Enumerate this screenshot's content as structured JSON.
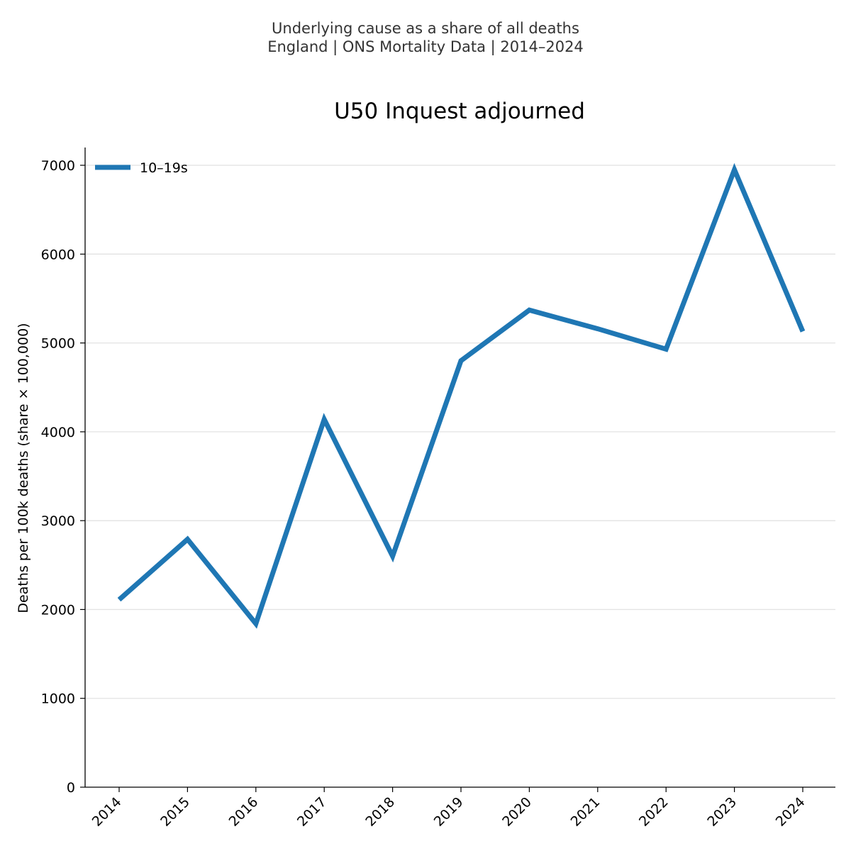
{
  "header": {
    "subtitle_line1": "Underlying cause as a share of all deaths",
    "subtitle_line2": "England | ONS Mortality Data | 2014–2024"
  },
  "chart_data": {
    "type": "line",
    "title": "U50 Inquest adjourned",
    "xlabel": "",
    "ylabel": "Deaths per 100k deaths (share × 100,000)",
    "categories": [
      "2014",
      "2015",
      "2016",
      "2017",
      "2018",
      "2019",
      "2020",
      "2021",
      "2022",
      "2023",
      "2024"
    ],
    "series": [
      {
        "name": "10–19s",
        "color": "#1f77b4",
        "values": [
          2110,
          2790,
          1840,
          4140,
          2600,
          4800,
          5370,
          5160,
          4930,
          6950,
          5130
        ]
      }
    ],
    "ylim": [
      0,
      7200
    ],
    "yticks": [
      0,
      1000,
      2000,
      3000,
      4000,
      5000,
      6000,
      7000
    ],
    "grid": "horizontal",
    "legend": "top-left"
  }
}
